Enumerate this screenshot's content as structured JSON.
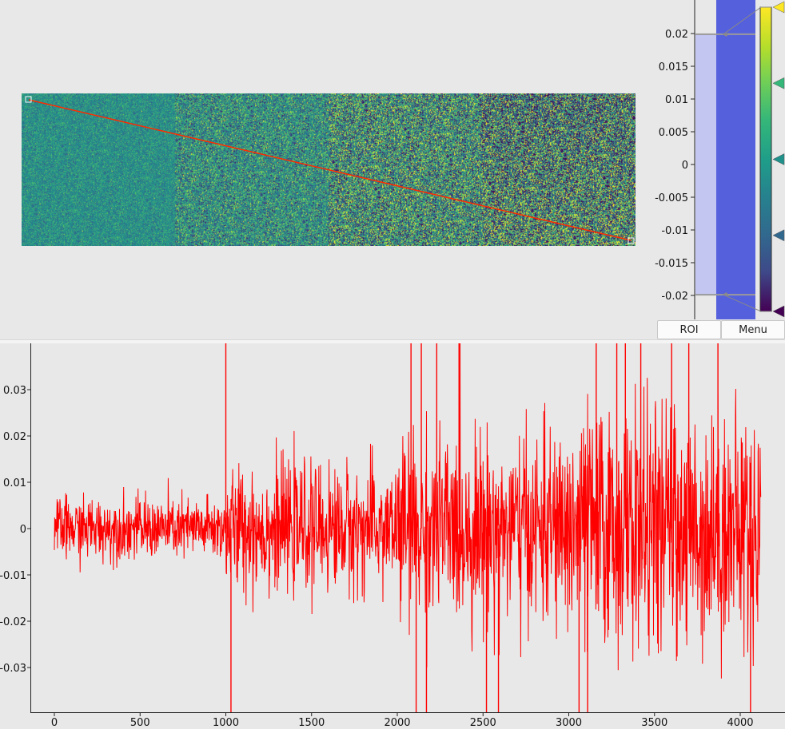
{
  "histogram": {
    "tick_labels": [
      "0.02",
      "0.015",
      "0.01",
      "0.005",
      "0",
      "-0.005",
      "-0.01",
      "-0.015",
      "-0.02"
    ],
    "tick_values": [
      0.02,
      0.015,
      0.01,
      0.005,
      0,
      -0.005,
      -0.01,
      -0.015,
      -0.02
    ],
    "level_max": 0.0199,
    "level_min": -0.0199,
    "gradient_ticks": [
      {
        "color": "#fde725",
        "icon": "triangle-left-icon"
      },
      {
        "color": "#35b779",
        "icon": "triangle-left-icon"
      },
      {
        "color": "#21918c",
        "icon": "triangle-left-icon"
      },
      {
        "color": "#31688e",
        "icon": "triangle-left-icon"
      },
      {
        "color": "#440154",
        "icon": "triangle-left-icon"
      }
    ]
  },
  "buttons": {
    "roi_label": "ROI",
    "menu_label": "Menu"
  },
  "colors": {
    "background": "#e8e8e8",
    "roi_line": "#ff2a00",
    "plot_line": "#ff0000",
    "region_dark": "#5560dd",
    "region_light": "#c3c6f0"
  },
  "image_view": {
    "colormap": "viridis",
    "columns": 4,
    "roi_handles": [
      "start-handle",
      "end-handle"
    ]
  },
  "chart_data": {
    "type": "line",
    "title": "",
    "xlabel": "",
    "ylabel": "",
    "xlim": [
      -130,
      4170
    ],
    "ylim": [
      -0.039,
      0.039
    ],
    "x_ticks": [
      0,
      500,
      1000,
      1500,
      2000,
      2500,
      3000,
      3500,
      4000
    ],
    "y_ticks": [
      0.03,
      0.02,
      0.01,
      0,
      -0.01,
      -0.02,
      -0.03
    ],
    "x_tick_labels": [
      "0",
      "500",
      "1000",
      "1500",
      "2000",
      "2500",
      "3000",
      "3500",
      "4000"
    ],
    "y_tick_labels": [
      "0.03",
      "0.02",
      "0.01",
      "0",
      "-0.01",
      "-0.02",
      "-0.03"
    ],
    "grid": false,
    "series": [
      {
        "color": "#ff0000",
        "segments": [
          {
            "x_start": 0,
            "x_end": 1000,
            "amplitude": 0.006
          },
          {
            "x_start": 1000,
            "x_end": 2000,
            "amplitude": 0.012
          },
          {
            "x_start": 2000,
            "x_end": 3000,
            "amplitude": 0.018
          },
          {
            "x_start": 3000,
            "x_end": 4120,
            "amplitude": 0.023
          }
        ],
        "spikes": [
          {
            "x": 1000,
            "y": 0.045
          },
          {
            "x": 1030,
            "y": -0.045
          },
          {
            "x": 2080,
            "y": 0.05
          },
          {
            "x": 2110,
            "y": -0.05
          },
          {
            "x": 2140,
            "y": 0.05
          },
          {
            "x": 2170,
            "y": -0.05
          },
          {
            "x": 2230,
            "y": 0.05
          },
          {
            "x": 2360,
            "y": 0.05
          },
          {
            "x": 2520,
            "y": -0.05
          },
          {
            "x": 2590,
            "y": -0.05
          },
          {
            "x": 3060,
            "y": -0.05
          },
          {
            "x": 3110,
            "y": -0.05
          },
          {
            "x": 3160,
            "y": 0.05
          },
          {
            "x": 3280,
            "y": 0.05
          },
          {
            "x": 3330,
            "y": 0.05
          },
          {
            "x": 3420,
            "y": 0.05
          },
          {
            "x": 3600,
            "y": 0.05
          },
          {
            "x": 3700,
            "y": 0.05
          },
          {
            "x": 3870,
            "y": 0.04
          },
          {
            "x": 4060,
            "y": -0.05
          }
        ]
      }
    ]
  }
}
